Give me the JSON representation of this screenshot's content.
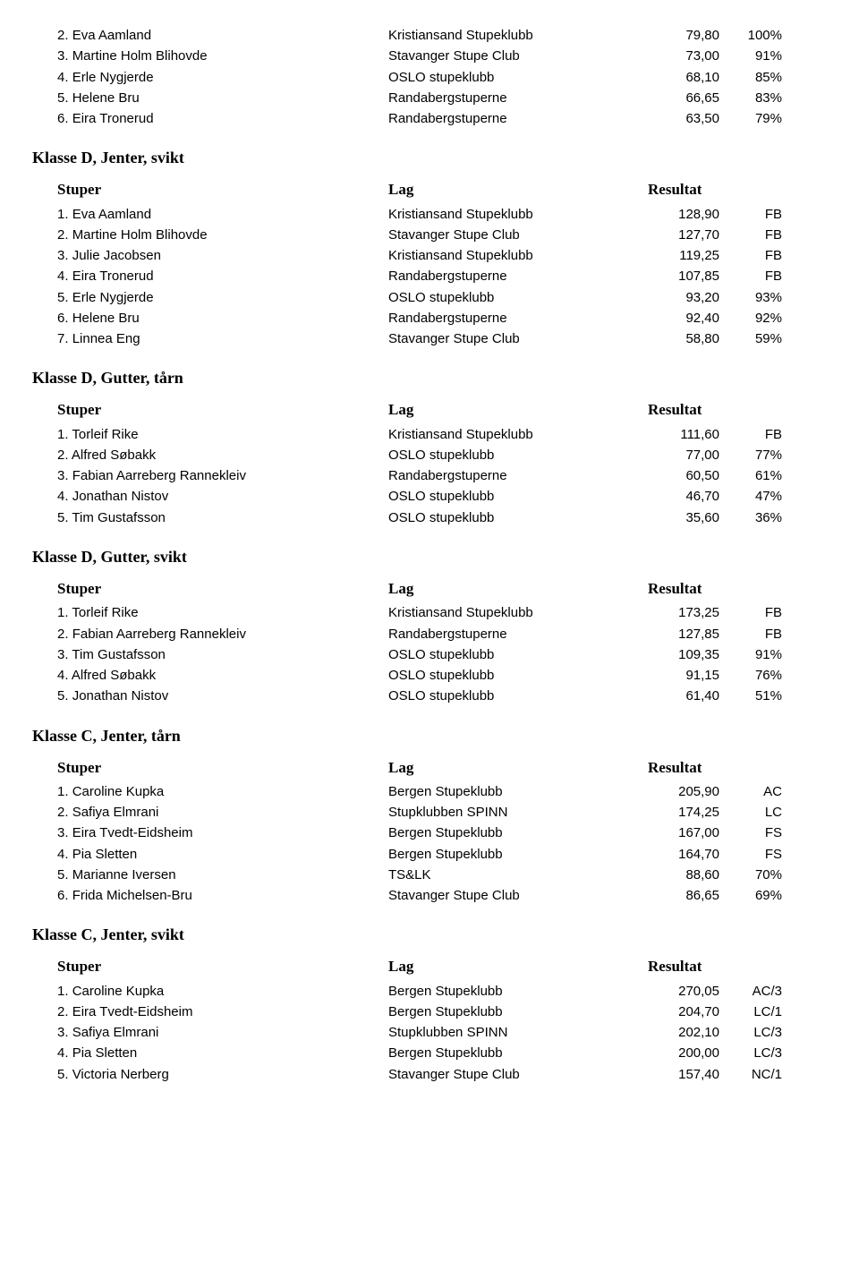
{
  "headers": {
    "stuper": "Stuper",
    "lag": "Lag",
    "resultat": "Resultat"
  },
  "sections": [
    {
      "title": null,
      "showHeader": false,
      "rows": [
        {
          "rank": "2.",
          "name": "Eva Aamland",
          "lag": "Kristiansand Stupeklubb",
          "res": "79,80",
          "note": "100%"
        },
        {
          "rank": "3.",
          "name": "Martine Holm Blihovde",
          "lag": "Stavanger Stupe Club",
          "res": "73,00",
          "note": "91%"
        },
        {
          "rank": "4.",
          "name": "Erle Nygjerde",
          "lag": "OSLO stupeklubb",
          "res": "68,10",
          "note": "85%"
        },
        {
          "rank": "5.",
          "name": "Helene Bru",
          "lag": "Randabergstuperne",
          "res": "66,65",
          "note": "83%"
        },
        {
          "rank": "6.",
          "name": "Eira Tronerud",
          "lag": "Randabergstuperne",
          "res": "63,50",
          "note": "79%"
        }
      ]
    },
    {
      "title": "Klasse D, Jenter, svikt",
      "showHeader": true,
      "rows": [
        {
          "rank": "1.",
          "name": "Eva Aamland",
          "lag": "Kristiansand Stupeklubb",
          "res": "128,90",
          "note": "FB"
        },
        {
          "rank": "2.",
          "name": "Martine Holm Blihovde",
          "lag": "Stavanger Stupe Club",
          "res": "127,70",
          "note": "FB"
        },
        {
          "rank": "3.",
          "name": "Julie Jacobsen",
          "lag": "Kristiansand Stupeklubb",
          "res": "119,25",
          "note": "FB"
        },
        {
          "rank": "4.",
          "name": "Eira Tronerud",
          "lag": "Randabergstuperne",
          "res": "107,85",
          "note": "FB"
        },
        {
          "rank": "5.",
          "name": "Erle Nygjerde",
          "lag": "OSLO stupeklubb",
          "res": "93,20",
          "note": "93%"
        },
        {
          "rank": "6.",
          "name": "Helene Bru",
          "lag": "Randabergstuperne",
          "res": "92,40",
          "note": "92%"
        },
        {
          "rank": "7.",
          "name": "Linnea Eng",
          "lag": "Stavanger Stupe Club",
          "res": "58,80",
          "note": "59%"
        }
      ]
    },
    {
      "title": "Klasse D, Gutter, tårn",
      "showHeader": true,
      "rows": [
        {
          "rank": "1.",
          "name": "Torleif Rike",
          "lag": "Kristiansand Stupeklubb",
          "res": "111,60",
          "note": "FB"
        },
        {
          "rank": "2.",
          "name": "Alfred Søbakk",
          "lag": "OSLO stupeklubb",
          "res": "77,00",
          "note": "77%"
        },
        {
          "rank": "3.",
          "name": "Fabian Aarreberg Rannekleiv",
          "lag": "Randabergstuperne",
          "res": "60,50",
          "note": "61%"
        },
        {
          "rank": "4.",
          "name": "Jonathan Nistov",
          "lag": "OSLO stupeklubb",
          "res": "46,70",
          "note": "47%"
        },
        {
          "rank": "5.",
          "name": "Tim Gustafsson",
          "lag": "OSLO stupeklubb",
          "res": "35,60",
          "note": "36%"
        }
      ]
    },
    {
      "title": "Klasse D, Gutter, svikt",
      "showHeader": true,
      "rows": [
        {
          "rank": "1.",
          "name": "Torleif Rike",
          "lag": "Kristiansand Stupeklubb",
          "res": "173,25",
          "note": "FB"
        },
        {
          "rank": "2.",
          "name": "Fabian Aarreberg Rannekleiv",
          "lag": "Randabergstuperne",
          "res": "127,85",
          "note": "FB"
        },
        {
          "rank": "3.",
          "name": "Tim Gustafsson",
          "lag": "OSLO stupeklubb",
          "res": "109,35",
          "note": "91%"
        },
        {
          "rank": "4.",
          "name": "Alfred Søbakk",
          "lag": "OSLO stupeklubb",
          "res": "91,15",
          "note": "76%"
        },
        {
          "rank": "5.",
          "name": "Jonathan Nistov",
          "lag": "OSLO stupeklubb",
          "res": "61,40",
          "note": "51%"
        }
      ]
    },
    {
      "title": "Klasse C, Jenter, tårn",
      "showHeader": true,
      "rows": [
        {
          "rank": "1.",
          "name": "Caroline Kupka",
          "lag": "Bergen Stupeklubb",
          "res": "205,90",
          "note": "AC"
        },
        {
          "rank": "2.",
          "name": "Safiya Elmrani",
          "lag": "Stupklubben SPINN",
          "res": "174,25",
          "note": "LC"
        },
        {
          "rank": "3.",
          "name": "Eira Tvedt-Eidsheim",
          "lag": "Bergen Stupeklubb",
          "res": "167,00",
          "note": "FS"
        },
        {
          "rank": "4.",
          "name": "Pia Sletten",
          "lag": "Bergen Stupeklubb",
          "res": "164,70",
          "note": "FS"
        },
        {
          "rank": "5.",
          "name": "Marianne Iversen",
          "lag": "TS&LK",
          "res": "88,60",
          "note": "70%"
        },
        {
          "rank": "6.",
          "name": "Frida Michelsen-Bru",
          "lag": "Stavanger Stupe Club",
          "res": "86,65",
          "note": "69%"
        }
      ]
    },
    {
      "title": "Klasse C, Jenter, svikt",
      "showHeader": true,
      "rows": [
        {
          "rank": "1.",
          "name": "Caroline Kupka",
          "lag": "Bergen Stupeklubb",
          "res": "270,05",
          "note": "AC/3"
        },
        {
          "rank": "2.",
          "name": "Eira Tvedt-Eidsheim",
          "lag": "Bergen Stupeklubb",
          "res": "204,70",
          "note": "LC/1"
        },
        {
          "rank": "3.",
          "name": "Safiya Elmrani",
          "lag": "Stupklubben SPINN",
          "res": "202,10",
          "note": "LC/3"
        },
        {
          "rank": "4.",
          "name": "Pia Sletten",
          "lag": "Bergen Stupeklubb",
          "res": "200,00",
          "note": "LC/3"
        },
        {
          "rank": "5.",
          "name": "Victoria Nerberg",
          "lag": "Stavanger Stupe Club",
          "res": "157,40",
          "note": "NC/1"
        }
      ]
    }
  ]
}
